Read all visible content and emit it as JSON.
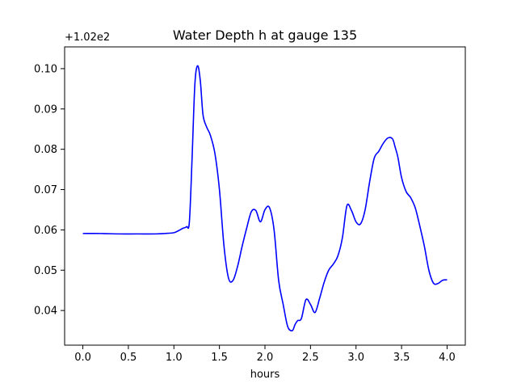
{
  "chart_data": {
    "type": "line",
    "title": "Water Depth h at gauge 135",
    "xlabel": "hours",
    "ylabel": "",
    "offset_text": "+1.02e2",
    "xlim": [
      -0.2,
      4.2
    ],
    "ylim": [
      0.0314,
      0.1054
    ],
    "xticks": [
      0.0,
      0.5,
      1.0,
      1.5,
      2.0,
      2.5,
      3.0,
      3.5,
      4.0
    ],
    "xtick_labels": [
      "0.0",
      "0.5",
      "1.0",
      "1.5",
      "2.0",
      "2.5",
      "3.0",
      "3.5",
      "4.0"
    ],
    "yticks": [
      0.04,
      0.05,
      0.06,
      0.07,
      0.08,
      0.09,
      0.1
    ],
    "ytick_labels": [
      "0.04",
      "0.05",
      "0.06",
      "0.07",
      "0.08",
      "0.09",
      "0.10"
    ],
    "grid": false,
    "series": [
      {
        "color": "#0000ff",
        "x": [
          0.0,
          0.2,
          0.4,
          0.6,
          0.8,
          0.9,
          1.0,
          1.05,
          1.1,
          1.14,
          1.17,
          1.2,
          1.23,
          1.26,
          1.29,
          1.32,
          1.36,
          1.4,
          1.45,
          1.5,
          1.55,
          1.6,
          1.65,
          1.7,
          1.75,
          1.8,
          1.85,
          1.9,
          1.95,
          2.0,
          2.05,
          2.1,
          2.15,
          2.2,
          2.25,
          2.3,
          2.33,
          2.36,
          2.4,
          2.45,
          2.5,
          2.55,
          2.6,
          2.65,
          2.7,
          2.75,
          2.8,
          2.85,
          2.9,
          2.95,
          3.0,
          3.05,
          3.1,
          3.15,
          3.2,
          3.25,
          3.3,
          3.35,
          3.4,
          3.43,
          3.46,
          3.5,
          3.55,
          3.6,
          3.65,
          3.7,
          3.75,
          3.8,
          3.85,
          3.9,
          3.95,
          4.0
        ],
        "y": [
          0.0591,
          0.0591,
          0.059,
          0.059,
          0.059,
          0.0591,
          0.0593,
          0.0598,
          0.0604,
          0.0608,
          0.062,
          0.078,
          0.096,
          0.1007,
          0.097,
          0.0885,
          0.0855,
          0.0835,
          0.079,
          0.07,
          0.056,
          0.048,
          0.0475,
          0.051,
          0.056,
          0.0605,
          0.0645,
          0.0648,
          0.062,
          0.065,
          0.0655,
          0.06,
          0.0475,
          0.0415,
          0.036,
          0.035,
          0.0365,
          0.0375,
          0.038,
          0.0427,
          0.0415,
          0.0395,
          0.043,
          0.047,
          0.05,
          0.0515,
          0.0535,
          0.058,
          0.066,
          0.0648,
          0.062,
          0.0615,
          0.065,
          0.072,
          0.0778,
          0.0795,
          0.0815,
          0.0828,
          0.0826,
          0.0805,
          0.078,
          0.073,
          0.0695,
          0.068,
          0.0655,
          0.061,
          0.056,
          0.05,
          0.0468,
          0.0467,
          0.0475,
          0.0476
        ]
      }
    ]
  }
}
